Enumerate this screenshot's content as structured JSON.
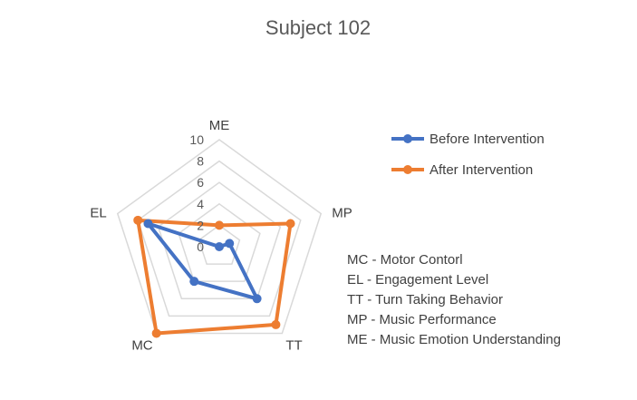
{
  "chart_data": {
    "type": "radar",
    "title": "Subject 102",
    "axes": [
      "ME",
      "MP",
      "TT",
      "MC",
      "EL"
    ],
    "ticks": [
      "0",
      "2",
      "4",
      "6",
      "8",
      "10"
    ],
    "rmax": 10,
    "grid": true,
    "legend_position": "right",
    "series": [
      {
        "name": "Before Intervention",
        "color": "#4472C4",
        "values": [
          0,
          1,
          6,
          4,
          7
        ]
      },
      {
        "name": "After Intervention",
        "color": "#ED7D31",
        "values": [
          2,
          7,
          9,
          10,
          8
        ]
      }
    ],
    "notes": [
      "MC - Motor Contorl",
      "EL - Engagement Level",
      "TT - Turn Taking Behavior",
      "MP - Music Performance",
      "ME - Music Emotion Understanding"
    ]
  }
}
